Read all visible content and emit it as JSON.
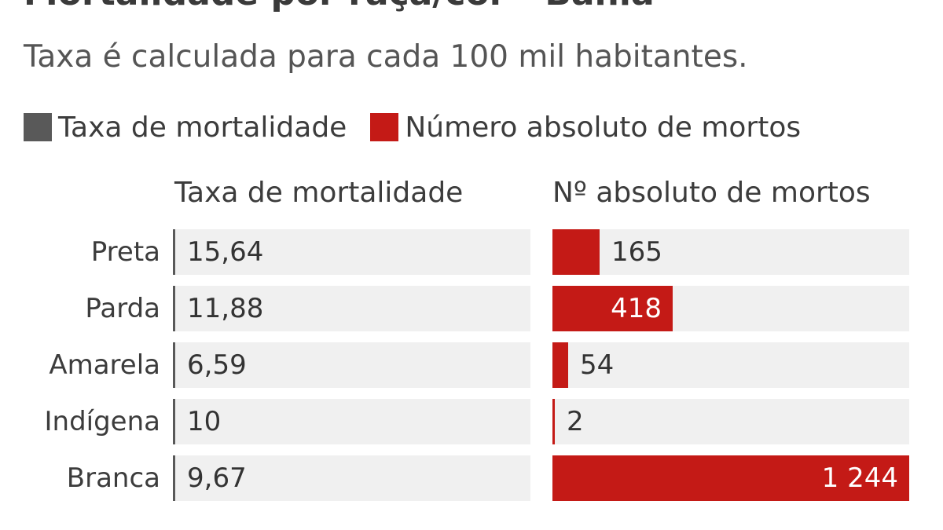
{
  "page": {
    "title_partial": "Mortalidade por raça/cor - Bahia",
    "subtitle": "Taxa é calculada para cada 100 mil habitantes."
  },
  "legend": [
    {
      "label": "Taxa de mortalidade",
      "color": "#595959"
    },
    {
      "label": "Número absoluto de mortos",
      "color": "#c41a16"
    }
  ],
  "chart_data": {
    "type": "bar",
    "orientation": "horizontal",
    "categories": [
      "Preta",
      "Parda",
      "Amarela",
      "Indígena",
      "Branca"
    ],
    "series": [
      {
        "name": "Taxa de mortalidade",
        "header": "Taxa de mortalidade",
        "values": [
          15.64,
          11.88,
          6.59,
          10,
          9.67
        ],
        "labels": [
          "15,64",
          "11,88",
          "6,59",
          "10",
          "9,67"
        ],
        "color": "#595959"
      },
      {
        "name": "Número absoluto de mortos",
        "header": "Nº absoluto de mortos",
        "values": [
          165,
          418,
          54,
          2,
          1244
        ],
        "labels": [
          "165",
          "418",
          "54",
          "2",
          "1 244"
        ],
        "color": "#c41a16"
      }
    ]
  }
}
